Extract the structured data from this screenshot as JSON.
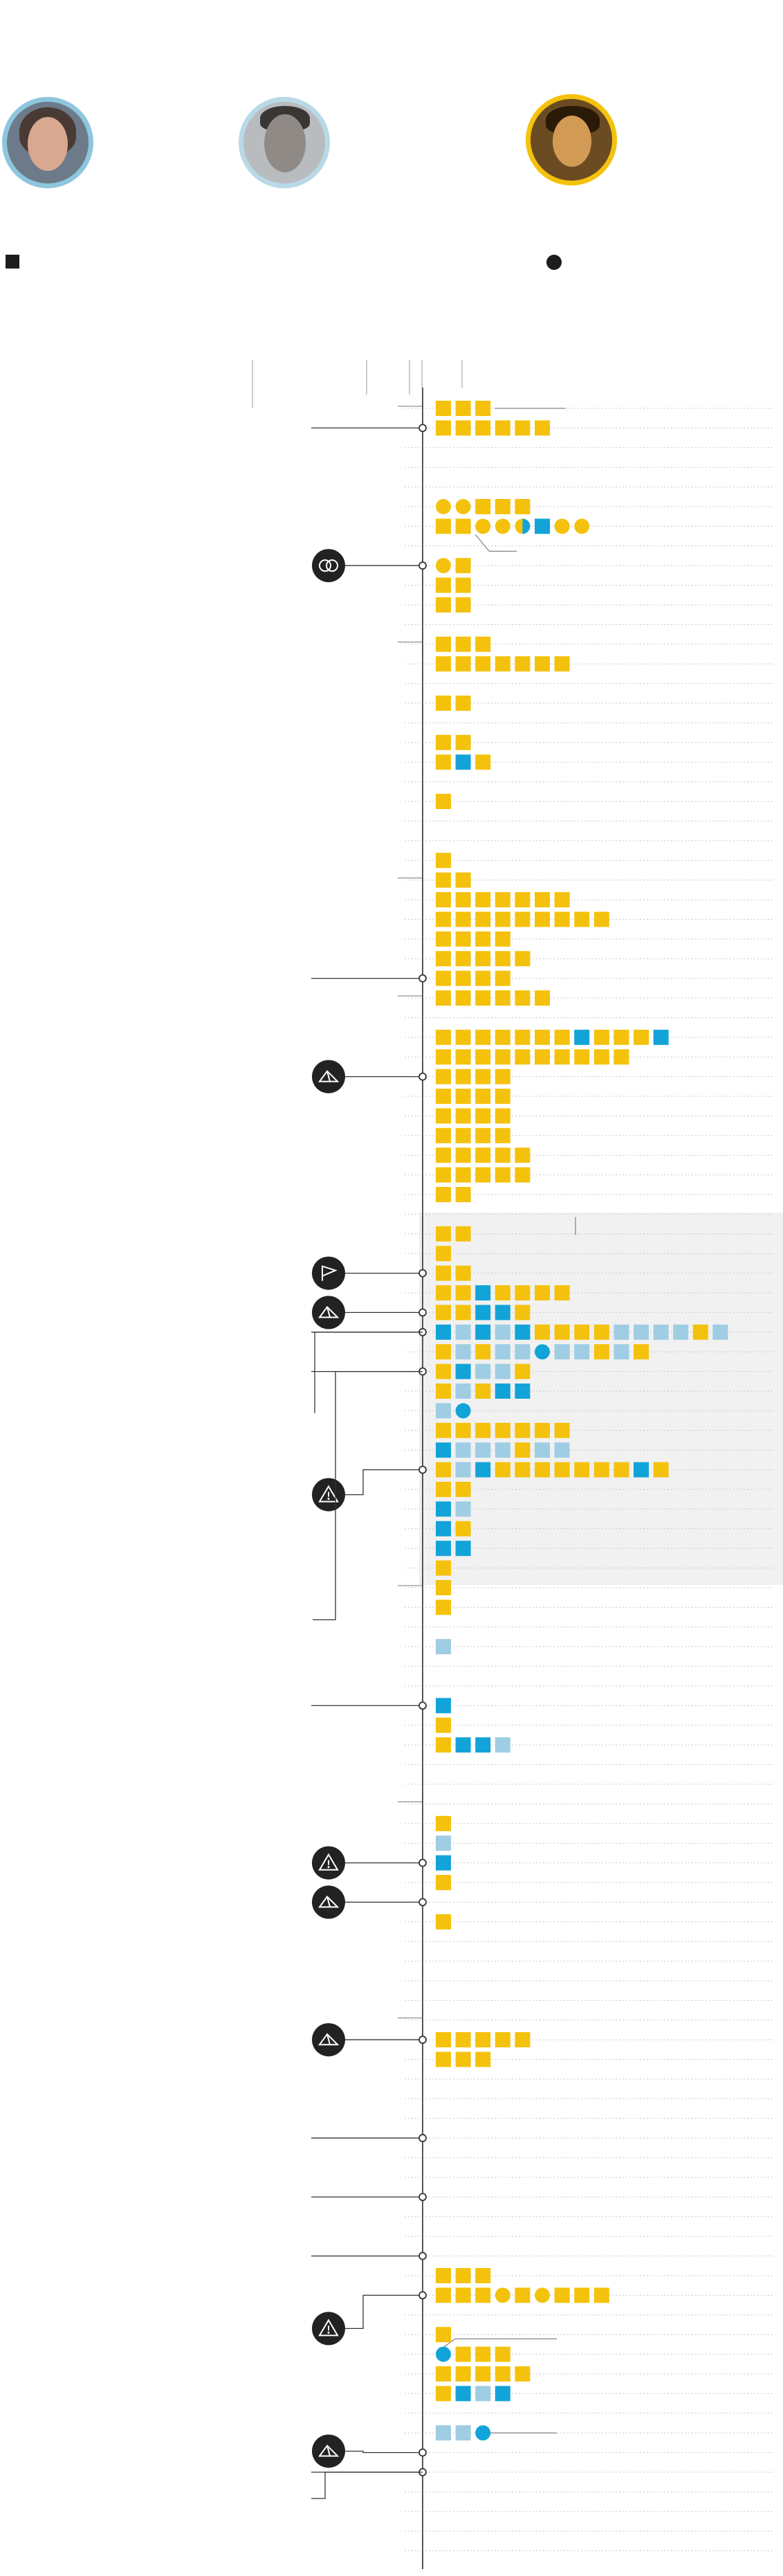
{
  "colors": {
    "primary": "#f4c20d",
    "secondary": "#12a4d8",
    "secondary_light": "#9fcde3",
    "axis": "#555555",
    "rule": "#c8c8c8",
    "icon_bg": "#222222",
    "shaded_band": "#f1f1f1"
  },
  "legend": {
    "square_marker": "square",
    "circle_marker": "circle"
  },
  "icons": [
    "rings-icon",
    "tent-icon",
    "flag-icon",
    "warning-icon"
  ],
  "chart_data": {
    "type": "timeline",
    "grid": true,
    "legend_placement": "top",
    "series": [
      {
        "color": "primary"
      },
      {
        "color": "secondary"
      },
      {
        "color": "secondary_light"
      }
    ],
    "rows": [
      {
        "row": 0,
        "cells": [
          "pq",
          "pq",
          "pq"
        ]
      },
      {
        "row": 1,
        "cells": [
          "pq",
          "pq",
          "pq",
          "pq",
          "pq",
          "pq"
        ]
      },
      {
        "row": 5,
        "cells": [
          "pc",
          "pc",
          "pq",
          "pq",
          "pq"
        ]
      },
      {
        "row": 6,
        "cells": [
          "pq",
          "pq",
          "pc",
          "pc",
          "half",
          "sq",
          "pc",
          "pc"
        ]
      },
      {
        "row": 8,
        "cells": [
          "pc",
          "pq"
        ]
      },
      {
        "row": 9,
        "cells": [
          "pq",
          "pq"
        ]
      },
      {
        "row": 10,
        "cells": [
          "pq",
          "pq"
        ]
      },
      {
        "row": 12,
        "cells": [
          "pq",
          "pq",
          "pq"
        ]
      },
      {
        "row": 13,
        "cells": [
          "pq",
          "pq",
          "pq",
          "pq",
          "pq",
          "pq",
          "pq"
        ]
      },
      {
        "row": 15,
        "cells": [
          "pq",
          "pq"
        ]
      },
      {
        "row": 17,
        "cells": [
          "pq",
          "pq"
        ]
      },
      {
        "row": 18,
        "cells": [
          "pq",
          "sq",
          "pq"
        ]
      },
      {
        "row": 20,
        "cells": [
          "pq"
        ]
      },
      {
        "row": 23,
        "cells": [
          "pq"
        ]
      },
      {
        "row": 24,
        "cells": [
          "pq",
          "pq"
        ]
      },
      {
        "row": 25,
        "cells": [
          "pq",
          "pq",
          "pq",
          "pq",
          "pq",
          "pq",
          "pq"
        ]
      },
      {
        "row": 26,
        "cells": [
          "pq",
          "pq",
          "pq",
          "pq",
          "pq",
          "pq",
          "pq",
          "pq",
          "pq"
        ]
      },
      {
        "row": 27,
        "cells": [
          "pq",
          "pq",
          "pq",
          "pq"
        ]
      },
      {
        "row": 28,
        "cells": [
          "pq",
          "pq",
          "pq",
          "pq",
          "pq"
        ]
      },
      {
        "row": 29,
        "cells": [
          "pq",
          "pq",
          "pq",
          "pq"
        ]
      },
      {
        "row": 30,
        "cells": [
          "pq",
          "pq",
          "pq",
          "pq",
          "pq",
          "pq"
        ]
      },
      {
        "row": 32,
        "cells": [
          "pq",
          "pq",
          "pq",
          "pq",
          "pq",
          "pq",
          "pq",
          "sq",
          "pq",
          "pq",
          "pq",
          "sq"
        ]
      },
      {
        "row": 33,
        "cells": [
          "pq",
          "pq",
          "pq",
          "pq",
          "pq",
          "pq",
          "pq",
          "pq",
          "pq",
          "pq"
        ]
      },
      {
        "row": 34,
        "cells": [
          "pq",
          "pq",
          "pq",
          "pq"
        ]
      },
      {
        "row": 35,
        "cells": [
          "pq",
          "pq",
          "pq",
          "pq"
        ]
      },
      {
        "row": 36,
        "cells": [
          "pq",
          "pq",
          "pq",
          "pq"
        ]
      },
      {
        "row": 37,
        "cells": [
          "pq",
          "pq",
          "pq",
          "pq"
        ]
      },
      {
        "row": 38,
        "cells": [
          "pq",
          "pq",
          "pq",
          "pq",
          "pq"
        ]
      },
      {
        "row": 39,
        "cells": [
          "pq",
          "pq",
          "pq",
          "pq",
          "pq"
        ]
      },
      {
        "row": 40,
        "cells": [
          "pq",
          "pq"
        ]
      },
      {
        "row": 42,
        "cells": [
          "pq",
          "pq"
        ]
      },
      {
        "row": 43,
        "cells": [
          "pq"
        ]
      },
      {
        "row": 44,
        "cells": [
          "pq",
          "pq"
        ]
      },
      {
        "row": 45,
        "cells": [
          "pq",
          "pq",
          "sq",
          "pq",
          "pq",
          "pq",
          "pq"
        ]
      },
      {
        "row": 46,
        "cells": [
          "pq",
          "pq",
          "sq",
          "sq",
          "pq"
        ]
      },
      {
        "row": 47,
        "cells": [
          "sq",
          "lq",
          "sq",
          "lq",
          "sq",
          "pq",
          "pq",
          "pq",
          "pq",
          "lq",
          "lq",
          "lq",
          "lq",
          "pq",
          "lq"
        ]
      },
      {
        "row": 48,
        "cells": [
          "pq",
          "lq",
          "pq",
          "lq",
          "lq",
          "sc",
          "lq",
          "lq",
          "pq",
          "lq",
          "pq"
        ]
      },
      {
        "row": 49,
        "cells": [
          "pq",
          "sq",
          "lq",
          "lq",
          "pq"
        ]
      },
      {
        "row": 50,
        "cells": [
          "pq",
          "lq",
          "pq",
          "sq",
          "sq"
        ]
      },
      {
        "row": 51,
        "cells": [
          "lq",
          "sc"
        ]
      },
      {
        "row": 52,
        "cells": [
          "pq",
          "pq",
          "pq",
          "pq",
          "pq",
          "pq",
          "pq"
        ]
      },
      {
        "row": 53,
        "cells": [
          "sq",
          "lq",
          "lq",
          "lq",
          "pq",
          "lq",
          "lq"
        ]
      },
      {
        "row": 54,
        "cells": [
          "pq",
          "lq",
          "sq",
          "pq",
          "pq",
          "pq",
          "pq",
          "pq",
          "pq",
          "pq",
          "sq",
          "pq"
        ]
      },
      {
        "row": 55,
        "cells": [
          "pq",
          "pq"
        ]
      },
      {
        "row": 56,
        "cells": [
          "sq",
          "lq"
        ]
      },
      {
        "row": 57,
        "cells": [
          "sq",
          "pq"
        ]
      },
      {
        "row": 58,
        "cells": [
          "sq",
          "sq"
        ]
      },
      {
        "row": 59,
        "cells": [
          "pq"
        ]
      },
      {
        "row": 60,
        "cells": [
          "pq"
        ]
      },
      {
        "row": 61,
        "cells": [
          "pq"
        ]
      },
      {
        "row": 63,
        "cells": [
          "lq"
        ]
      },
      {
        "row": 66,
        "cells": [
          "sq"
        ]
      },
      {
        "row": 67,
        "cells": [
          "pq"
        ]
      },
      {
        "row": 68,
        "cells": [
          "pq",
          "sq",
          "sq",
          "lq"
        ]
      },
      {
        "row": 72,
        "cells": [
          "pq"
        ]
      },
      {
        "row": 73,
        "cells": [
          "lq"
        ]
      },
      {
        "row": 74,
        "cells": [
          "sq"
        ]
      },
      {
        "row": 75,
        "cells": [
          "pq"
        ]
      },
      {
        "row": 77,
        "cells": [
          "pq"
        ]
      },
      {
        "row": 83,
        "cells": [
          "pq",
          "pq",
          "pq",
          "pq",
          "pq"
        ]
      },
      {
        "row": 84,
        "cells": [
          "pq",
          "pq",
          "pq"
        ]
      },
      {
        "row": 95,
        "cells": [
          "pq",
          "pq",
          "pq"
        ]
      },
      {
        "row": 96,
        "cells": [
          "pq",
          "pq",
          "pq",
          "pc",
          "pq",
          "pc",
          "pq",
          "pq",
          "pq"
        ]
      },
      {
        "row": 98,
        "cells": [
          "pq"
        ]
      },
      {
        "row": 99,
        "cells": [
          "sc",
          "pq",
          "pq",
          "pq"
        ]
      },
      {
        "row": 100,
        "cells": [
          "pq",
          "pq",
          "pq",
          "pq",
          "pq"
        ]
      },
      {
        "row": 101,
        "cells": [
          "pq",
          "sq",
          "lq",
          "sq"
        ]
      },
      {
        "row": 103,
        "cells": [
          "lq",
          "lq",
          "sc"
        ]
      }
    ],
    "events": [
      {
        "row": 1,
        "icon": null
      },
      {
        "row": 8,
        "icon": "rings-icon"
      },
      {
        "row": 29,
        "icon": null
      },
      {
        "row": 34,
        "icon": "tent-icon"
      },
      {
        "row": 44,
        "icon": "flag-icon"
      },
      {
        "row": 46,
        "icon": "tent-icon"
      },
      {
        "row": 47,
        "icon": null
      },
      {
        "row": 49,
        "icon": null
      },
      {
        "row": 54,
        "icon": "warning-icon"
      },
      {
        "row": 66,
        "icon": null
      },
      {
        "row": 74,
        "icon": "warning-icon"
      },
      {
        "row": 76,
        "icon": "tent-icon"
      },
      {
        "row": 83,
        "icon": "tent-icon"
      },
      {
        "row": 88,
        "icon": null
      },
      {
        "row": 91,
        "icon": null
      },
      {
        "row": 94,
        "icon": null
      },
      {
        "row": 96,
        "icon": "warning-icon"
      },
      {
        "row": 104,
        "icon": "tent-icon"
      },
      {
        "row": 105,
        "icon": null
      }
    ],
    "shaded_rows": [
      41,
      59
    ]
  }
}
